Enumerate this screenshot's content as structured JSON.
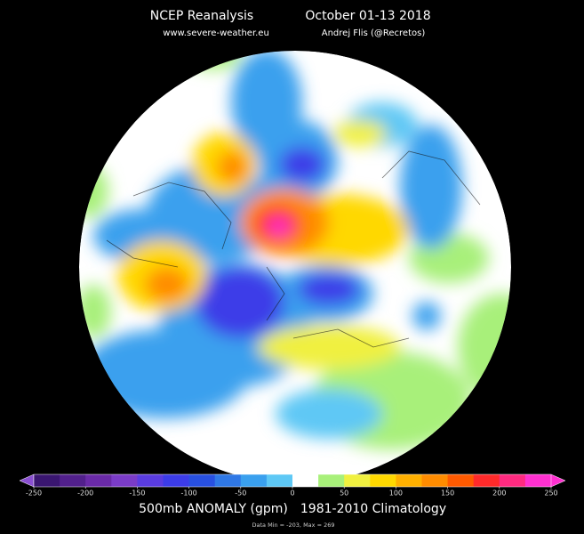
{
  "header": {
    "title": "NCEP Reanalysis",
    "period": "October 01-13  2018",
    "website": "www.severe-weather.eu",
    "author": "Andrej Flis (@Recretos)"
  },
  "colorbar": {
    "lim": [
      -250,
      250
    ],
    "ticks": [
      -250,
      -200,
      -150,
      -100,
      -50,
      0,
      50,
      100,
      150,
      200,
      250
    ],
    "colors": [
      "#3a1670",
      "#52208c",
      "#6a2aa8",
      "#7b3cc8",
      "#5a3ce0",
      "#3c3ce8",
      "#2850e0",
      "#2f78e6",
      "#3aa0ee",
      "#5ec8f5",
      "#ffffff",
      "#a8f07a",
      "#f0f040",
      "#ffd800",
      "#ffb000",
      "#ff8c00",
      "#ff5a00",
      "#ff2a2a",
      "#ff2a80",
      "#ff30d0"
    ]
  },
  "footer": {
    "variable": "500mb ANOMALY (gpm)",
    "climatology": "1981-2010 Climatology",
    "stats": "Data Min = -203, Max = 269"
  }
}
